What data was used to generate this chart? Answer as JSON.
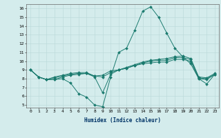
{
  "xlabel": "Humidex (Indice chaleur)",
  "ylabel": "",
  "bg_color": "#d4ecec",
  "line_color": "#1a7a6e",
  "grid_color": "#b8d8d8",
  "xlim": [
    -0.5,
    23.5
  ],
  "ylim": [
    4.7,
    16.5
  ],
  "xticks": [
    0,
    1,
    2,
    3,
    4,
    5,
    6,
    7,
    8,
    9,
    10,
    11,
    12,
    13,
    14,
    15,
    16,
    17,
    18,
    19,
    20,
    21,
    22,
    23
  ],
  "yticks": [
    5,
    6,
    7,
    8,
    9,
    10,
    11,
    12,
    13,
    14,
    15,
    16
  ],
  "series": [
    [
      9.0,
      8.2,
      7.9,
      7.9,
      8.0,
      7.5,
      6.3,
      5.9,
      5.0,
      4.8,
      8.2,
      11.0,
      11.5,
      13.5,
      15.7,
      16.2,
      15.0,
      13.2,
      11.5,
      10.5,
      9.7,
      8.0,
      7.4,
      8.5
    ],
    [
      9.0,
      8.2,
      7.9,
      7.9,
      8.2,
      8.4,
      8.5,
      8.6,
      8.2,
      6.4,
      8.5,
      9.0,
      9.2,
      9.5,
      9.7,
      9.8,
      9.9,
      9.9,
      10.2,
      10.2,
      10.0,
      8.0,
      7.9,
      8.5
    ],
    [
      9.0,
      8.2,
      7.9,
      8.1,
      8.3,
      8.5,
      8.6,
      8.6,
      8.3,
      8.2,
      8.7,
      9.0,
      9.2,
      9.5,
      9.8,
      10.0,
      10.1,
      10.1,
      10.4,
      10.4,
      10.2,
      8.1,
      8.0,
      8.5
    ],
    [
      9.0,
      8.2,
      7.9,
      8.2,
      8.4,
      8.6,
      8.7,
      8.7,
      8.3,
      8.4,
      8.9,
      9.0,
      9.3,
      9.6,
      9.9,
      10.1,
      10.2,
      10.3,
      10.5,
      10.6,
      10.3,
      8.2,
      8.1,
      8.6
    ]
  ],
  "xlabel_fontsize": 5.5,
  "tick_fontsize": 4.5
}
